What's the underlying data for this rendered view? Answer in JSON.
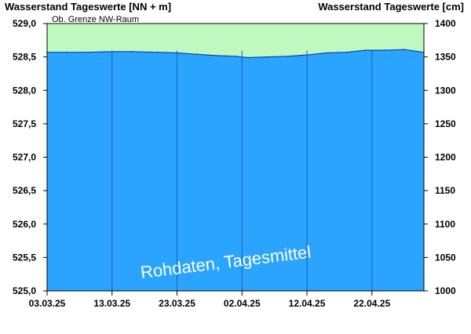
{
  "chart_data": {
    "type": "area",
    "left_axis_title": "Wasserstand Tageswerte [NN + m]",
    "right_axis_title": "Wasserstand Tageswerte [cm]",
    "annotation": "Ob. Grenze NW-Raum",
    "watermark": "Rohdaten, Tagesmittel",
    "ylim_left": [
      525.0,
      529.0
    ],
    "ylim_right": [
      1000,
      1400
    ],
    "left_ticks": [
      "529,0",
      "528,5",
      "528,0",
      "527,5",
      "527,0",
      "526,5",
      "526,0",
      "525,5",
      "525,0"
    ],
    "right_ticks": [
      "1400",
      "1350",
      "1300",
      "1250",
      "1200",
      "1150",
      "1100",
      "1050",
      "1000"
    ],
    "x_tick_labels": [
      "03.03.25",
      "13.03.25",
      "23.03.25",
      "02.04.25",
      "12.04.25",
      "22.04.25"
    ],
    "x_range": [
      "2025-03-03",
      "2025-04-30"
    ],
    "upper_band_label": "Ob. Grenze NW-Raum",
    "series": [
      {
        "dates": [
          "2025-03-03",
          "2025-03-06",
          "2025-03-09",
          "2025-03-13",
          "2025-03-16",
          "2025-03-20",
          "2025-03-23",
          "2025-03-26",
          "2025-03-29",
          "2025-04-01",
          "2025-04-03",
          "2025-04-06",
          "2025-04-09",
          "2025-04-12",
          "2025-04-15",
          "2025-04-18",
          "2025-04-21",
          "2025-04-24",
          "2025-04-27",
          "2025-04-30"
        ],
        "values": [
          528.57,
          528.57,
          528.57,
          528.58,
          528.58,
          528.57,
          528.56,
          528.54,
          528.52,
          528.51,
          528.49,
          528.5,
          528.51,
          528.53,
          528.56,
          528.57,
          528.6,
          528.6,
          528.61,
          528.57
        ]
      }
    ],
    "colors": {
      "band": "#bff9bf",
      "water": "#2aa4ff",
      "water_line": "#0a3fb0",
      "grid": "#1c5fb8"
    }
  }
}
